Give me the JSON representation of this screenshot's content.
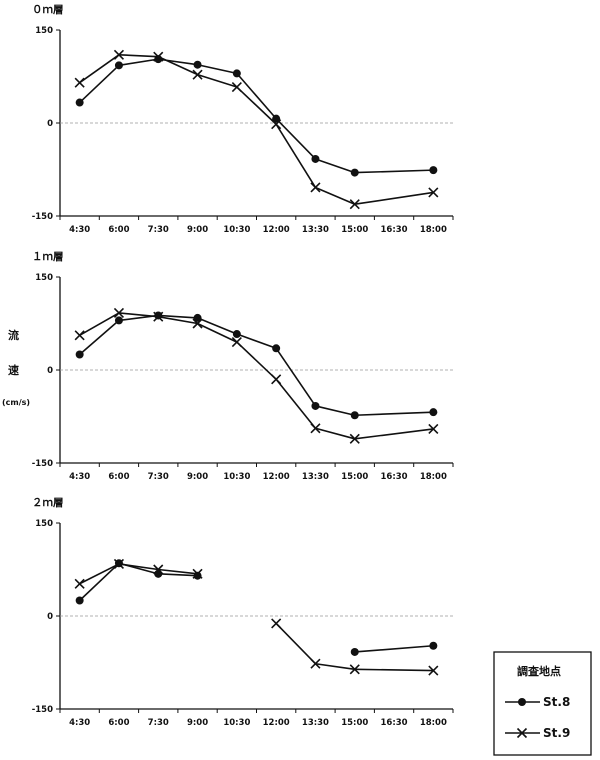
{
  "chart_data": [
    {
      "type": "line",
      "title": "０ｍ層",
      "categories": [
        "4:30",
        "6:00",
        "7:30",
        "9:00",
        "10:30",
        "12:00",
        "13:30",
        "15:00",
        "16:30",
        "18:00"
      ],
      "ylim": [
        -150,
        150
      ],
      "yticks": [
        "150",
        "0",
        "-150"
      ],
      "series": [
        {
          "name": "St.8",
          "marker": "circle",
          "values": [
            33,
            93,
            103,
            94,
            80,
            7,
            -58,
            -80,
            null,
            -76
          ]
        },
        {
          "name": "St.9",
          "marker": "cross",
          "values": [
            65,
            110,
            107,
            78,
            58,
            -2,
            -104,
            -131,
            null,
            -112
          ]
        }
      ]
    },
    {
      "type": "line",
      "title": "１ｍ層",
      "categories": [
        "4:30",
        "6:00",
        "7:30",
        "9:00",
        "10:30",
        "12:00",
        "13:30",
        "15:00",
        "16:30",
        "18:00"
      ],
      "ylim": [
        -150,
        150
      ],
      "yticks": [
        "150",
        "0",
        "-150"
      ],
      "series": [
        {
          "name": "St.8",
          "marker": "circle",
          "values": [
            25,
            80,
            88,
            84,
            58,
            35,
            -58,
            -73,
            null,
            -68
          ]
        },
        {
          "name": "St.9",
          "marker": "cross",
          "values": [
            56,
            92,
            86,
            75,
            45,
            -15,
            -94,
            -111,
            null,
            -95
          ]
        }
      ]
    },
    {
      "type": "line",
      "title": "２ｍ層",
      "categories": [
        "4:30",
        "6:00",
        "7:30",
        "9:00",
        "10:30",
        "12:00",
        "13:30",
        "15:00",
        "16:30",
        "18:00"
      ],
      "ylim": [
        -150,
        150
      ],
      "yticks": [
        "150",
        "0",
        "-150"
      ],
      "series": [
        {
          "name": "St.8",
          "marker": "circle",
          "values": [
            25,
            85,
            68,
            65,
            null,
            null,
            null,
            -58,
            null,
            -48
          ]
        },
        {
          "name": "St.9",
          "marker": "cross",
          "values": [
            52,
            84,
            75,
            68,
            null,
            -12,
            -77,
            -86,
            null,
            -88
          ]
        }
      ]
    }
  ],
  "ylabel": {
    "line1": "流",
    "line2": "速",
    "unit": "(cm/s)"
  },
  "legend": {
    "title": "調査地点",
    "items": [
      "St.8",
      "St.9"
    ]
  }
}
